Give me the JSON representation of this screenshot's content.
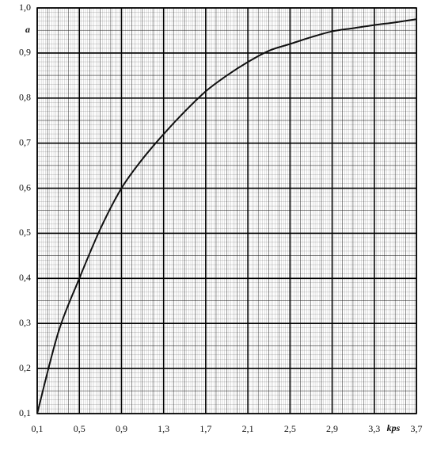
{
  "chart_data": {
    "type": "line",
    "x_label": "kps",
    "y_label": "a",
    "x": [
      0.1,
      0.3,
      0.5,
      0.7,
      0.9,
      1.1,
      1.3,
      1.5,
      1.7,
      1.9,
      2.1,
      2.3,
      2.5,
      2.7,
      2.9,
      3.1,
      3.3,
      3.5,
      3.7
    ],
    "values": [
      0.1,
      0.28,
      0.4,
      0.51,
      0.6,
      0.665,
      0.72,
      0.77,
      0.815,
      0.85,
      0.88,
      0.905,
      0.92,
      0.935,
      0.948,
      0.955,
      0.962,
      0.968,
      0.975
    ],
    "color": "#111111",
    "xlim": [
      0.1,
      3.7
    ],
    "ylim": [
      0.1,
      1.0
    ],
    "xticks": [
      {
        "value": 0.1,
        "label": "0,1"
      },
      {
        "value": 0.5,
        "label": "0,5"
      },
      {
        "value": 0.9,
        "label": "0,9"
      },
      {
        "value": 1.3,
        "label": "1,3"
      },
      {
        "value": 1.7,
        "label": "1,7"
      },
      {
        "value": 2.1,
        "label": "2,1"
      },
      {
        "value": 2.5,
        "label": "2,5"
      },
      {
        "value": 2.9,
        "label": "2,9"
      },
      {
        "value": 3.3,
        "label": "3,3"
      },
      {
        "value": 3.7,
        "label": "3,7"
      }
    ],
    "yticks": [
      {
        "value": 0.1,
        "label": "0,1"
      },
      {
        "value": 0.2,
        "label": "0,2"
      },
      {
        "value": 0.3,
        "label": "0,3"
      },
      {
        "value": 0.4,
        "label": "0,4"
      },
      {
        "value": 0.5,
        "label": "0,5"
      },
      {
        "value": 0.6,
        "label": "0,6"
      },
      {
        "value": 0.7,
        "label": "0,7"
      },
      {
        "value": 0.8,
        "label": "0,8"
      },
      {
        "value": 0.9,
        "label": "0,9"
      },
      {
        "value": 1.0,
        "label": "1,0"
      }
    ],
    "grid": true
  }
}
